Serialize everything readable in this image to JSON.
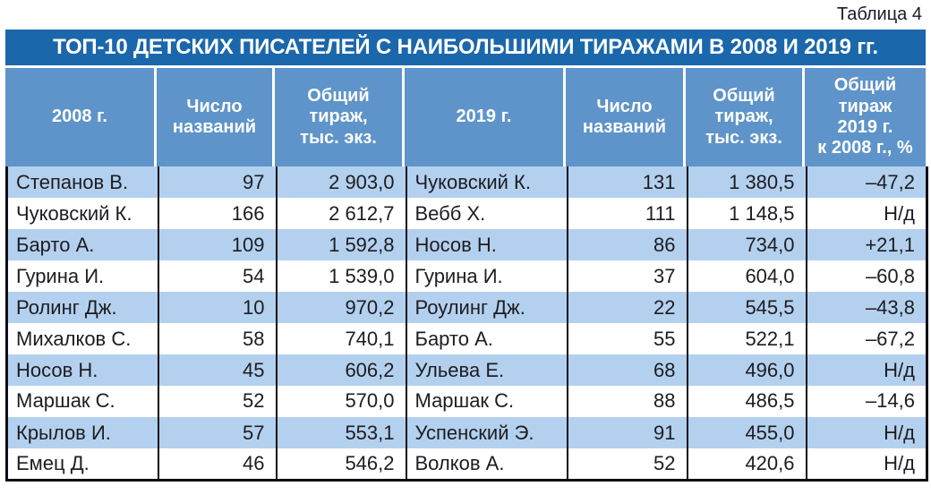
{
  "caption": "Таблица 4",
  "title": "ТОП-10 ДЕТСКИХ ПИСАТЕЛЕЙ С НАИБОЛЬШИМИ ТИРАЖАМИ В 2008 И 2019 гг.",
  "chart_data": {
    "type": "table",
    "columns": [
      "2008 г.",
      "Число\nназваний",
      "Общий\nтираж,\nтыс. экз.",
      "2019 г.",
      "Число\nназваний",
      "Общий\nтираж,\nтыс. экз.",
      "Общий\nтираж\n2019 г.\nк 2008 г., %"
    ],
    "column_meanings": [
      "author_2008",
      "titles_count_2008",
      "total_print_run_thousand_2008",
      "author_2019",
      "titles_count_2019",
      "total_print_run_thousand_2019",
      "print_run_2019_vs_2008_percent"
    ],
    "rows": [
      [
        "Степанов В.",
        "97",
        "2 903,0",
        "Чуковский К.",
        "131",
        "1 380,5",
        "–47,2"
      ],
      [
        "Чуковский К.",
        "166",
        "2 612,7",
        "Вебб Х.",
        "111",
        "1 148,5",
        "Н/д"
      ],
      [
        "Барто А.",
        "109",
        "1 592,8",
        "Носов Н.",
        "86",
        "734,0",
        "+21,1"
      ],
      [
        "Гурина И.",
        "54",
        "1 539,0",
        "Гурина И.",
        "37",
        "604,0",
        "–60,8"
      ],
      [
        "Ролинг Дж.",
        "10",
        "970,2",
        "Роулинг Дж.",
        "22",
        "545,5",
        "–43,8"
      ],
      [
        "Михалков С.",
        "58",
        "740,1",
        "Барто А.",
        "55",
        "522,1",
        "–67,2"
      ],
      [
        "Носов Н.",
        "45",
        "606,2",
        "Ульева Е.",
        "68",
        "496,0",
        "Н/д"
      ],
      [
        "Маршак С.",
        "52",
        "570,0",
        "Маршак С.",
        "88",
        "486,5",
        "–14,6"
      ],
      [
        "Крылов И.",
        "57",
        "553,1",
        "Успенский Э.",
        "91",
        "455,0",
        "Н/д"
      ],
      [
        "Емец Д.",
        "46",
        "546,2",
        "Волков А.",
        "52",
        "420,6",
        "Н/д"
      ]
    ]
  },
  "colors": {
    "title_bar_bg": "#1b67ab",
    "header_bg": "#5e94c9",
    "stripe_bg": "#b3d1ee",
    "border": "#0d0d16",
    "text": "#1e1c22",
    "header_text": "#ffffff"
  }
}
